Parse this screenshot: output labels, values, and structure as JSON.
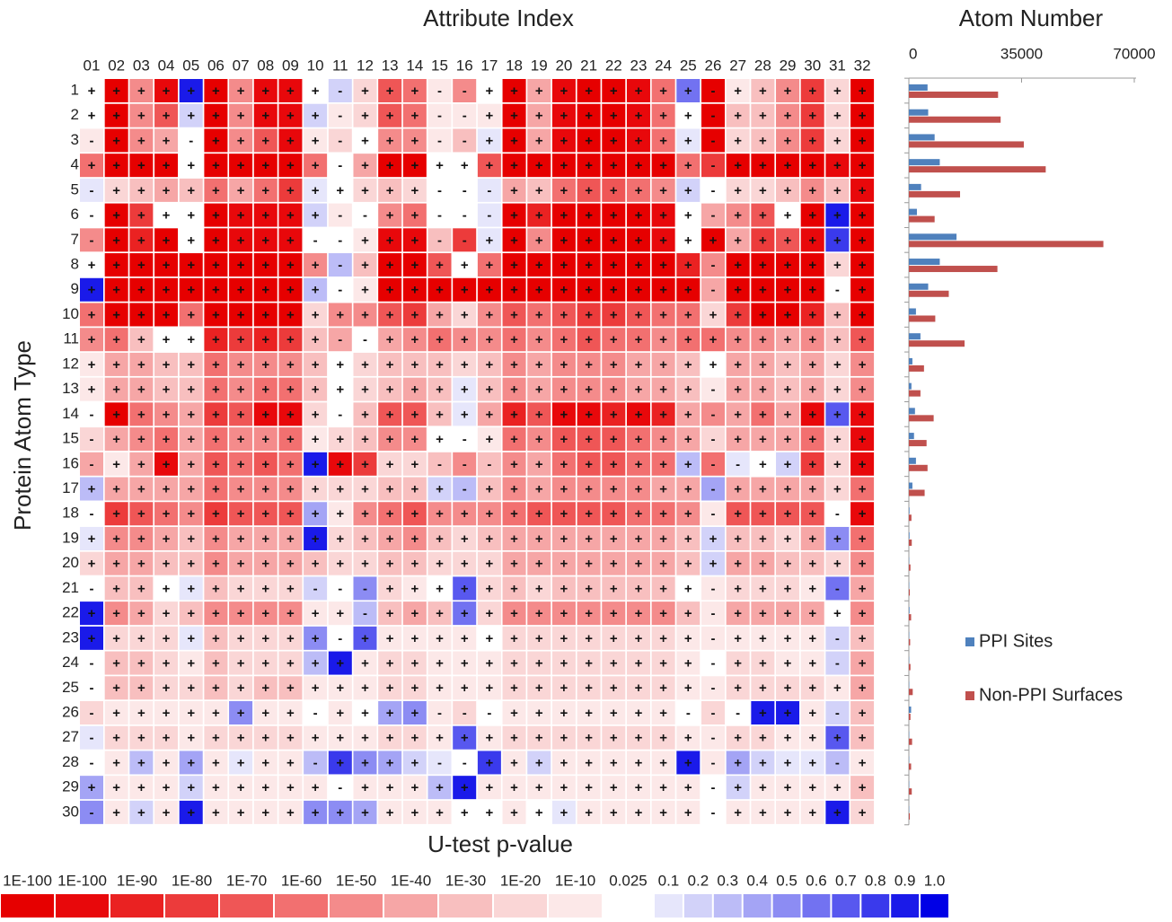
{
  "chart_data": [
    {
      "type": "heatmap",
      "title": "Attribute Index",
      "y_label": "Protein Atom Type",
      "x_label": "U-test p-value",
      "x_categories": [
        "01",
        "02",
        "03",
        "04",
        "05",
        "06",
        "07",
        "08",
        "09",
        "10",
        "11",
        "12",
        "13",
        "14",
        "15",
        "16",
        "17",
        "18",
        "19",
        "20",
        "21",
        "22",
        "23",
        "24",
        "25",
        "26",
        "27",
        "28",
        "29",
        "30",
        "31",
        "32"
      ],
      "y_categories": [
        1,
        2,
        3,
        4,
        5,
        6,
        7,
        8,
        9,
        10,
        11,
        12,
        13,
        14,
        15,
        16,
        17,
        18,
        19,
        20,
        21,
        22,
        23,
        24,
        25,
        26,
        27,
        28,
        29,
        30
      ],
      "signs": [
        "++++++++++-+++--+++++++++-++++++",
        "++++++++++-+++--+++++++++-++++++",
        "-+++-+++++-+++--+++++++++-++++++",
        "++++++++++-++++++++++++++-++++++",
        "-+++++++++++++---++++++++-++++++",
        "-+++++++++--++---++++++++-++++++",
        "-++++++++--+++--++++++++++++++++",
        "++++++++++-++++++++++++++-++++++",
        "++++++++++-++++++++++++++-++++-+",
        "++++++++++++++++++++++++++++++++",
        "++++++++++--++++++++++++++++++++",
        "++++++++++++++++++++++++++++++++",
        "+++++++++++++++++++++++++-++++++",
        "-+++++++++-++++++++++++++-++++++",
        "-++++++++++++++-+++++++++-++++++",
        "-+++++++++++++---++++++++--+++++",
        "+++++++++++++++-+++++++++-++++++",
        "-++++++++++++++++++++++++-++++-+",
        "++++++++++++++++++++++++++++++++",
        "++++++++++++++++++++++++++++++++",
        "-++++++++---+++++++++++++-++++-+",
        "+++++++++++-+++++++++++++-++++++",
        "++++++++++-++++++++++++++-++++-+",
        "-++++++++++++++++++++++++-++++-+",
        "-++++++++++++++++++++++++-++++++",
        "-++++++++-++++---+++++++---+++-+",
        "-++++++++++++++++++++++++-++++++",
        "-++++++++-++++--+++++++++-++++-+",
        "++++++++++-++++++++++++++-++++++",
        "-++++++++++++++++++++++++-++++++"
      ],
      "levels": [
        [
          11,
          0,
          6,
          1,
          20,
          0,
          6,
          1,
          1,
          11,
          13,
          9,
          4,
          5,
          10,
          6,
          11,
          0,
          7,
          1,
          0,
          0,
          1,
          5,
          17,
          0,
          10,
          8,
          6,
          3,
          9,
          0
        ],
        [
          11,
          0,
          6,
          4,
          13,
          0,
          6,
          1,
          1,
          13,
          10,
          9,
          4,
          5,
          10,
          10,
          10,
          0,
          7,
          1,
          0,
          0,
          1,
          5,
          11,
          0,
          8,
          8,
          6,
          3,
          9,
          0
        ],
        [
          10,
          0,
          6,
          7,
          11,
          0,
          6,
          4,
          1,
          10,
          9,
          11,
          6,
          6,
          10,
          8,
          12,
          0,
          7,
          1,
          0,
          0,
          1,
          5,
          12,
          0,
          9,
          8,
          6,
          3,
          9,
          0
        ],
        [
          5,
          0,
          0,
          0,
          11,
          0,
          0,
          0,
          0,
          5,
          11,
          7,
          0,
          0,
          11,
          11,
          4,
          0,
          0,
          0,
          0,
          0,
          0,
          0,
          5,
          3,
          0,
          0,
          0,
          0,
          1,
          0
        ],
        [
          12,
          9,
          8,
          7,
          8,
          5,
          7,
          5,
          3,
          12,
          11,
          9,
          8,
          9,
          11,
          11,
          12,
          7,
          8,
          5,
          4,
          4,
          5,
          6,
          13,
          11,
          9,
          9,
          8,
          6,
          8,
          1
        ],
        [
          11,
          0,
          3,
          11,
          11,
          0,
          1,
          1,
          1,
          13,
          10,
          11,
          6,
          5,
          11,
          11,
          12,
          0,
          2,
          0,
          0,
          0,
          0,
          1,
          11,
          7,
          6,
          4,
          11,
          0,
          20,
          0
        ],
        [
          6,
          0,
          2,
          0,
          11,
          0,
          1,
          1,
          1,
          11,
          11,
          10,
          1,
          1,
          8,
          3,
          12,
          0,
          6,
          0,
          0,
          0,
          0,
          1,
          11,
          0,
          7,
          3,
          4,
          1,
          19,
          0
        ],
        [
          11,
          0,
          0,
          0,
          0,
          0,
          0,
          0,
          0,
          6,
          14,
          8,
          0,
          0,
          4,
          11,
          5,
          0,
          0,
          0,
          0,
          0,
          0,
          0,
          2,
          6,
          0,
          0,
          0,
          0,
          9,
          0
        ],
        [
          20,
          0,
          0,
          0,
          0,
          0,
          0,
          0,
          0,
          14,
          11,
          10,
          0,
          0,
          0,
          0,
          0,
          0,
          0,
          0,
          0,
          0,
          0,
          0,
          0,
          7,
          0,
          0,
          0,
          0,
          11,
          0
        ],
        [
          5,
          0,
          0,
          0,
          5,
          0,
          0,
          0,
          0,
          9,
          6,
          6,
          4,
          3,
          7,
          9,
          6,
          4,
          5,
          4,
          3,
          3,
          4,
          5,
          5,
          9,
          3,
          0,
          0,
          2,
          8,
          0
        ],
        [
          6,
          5,
          8,
          11,
          11,
          2,
          3,
          2,
          3,
          8,
          7,
          11,
          7,
          6,
          5,
          6,
          6,
          5,
          6,
          5,
          4,
          5,
          5,
          6,
          5,
          5,
          6,
          6,
          7,
          6,
          8,
          4
        ],
        [
          10,
          7,
          7,
          8,
          8,
          5,
          6,
          6,
          6,
          8,
          11,
          9,
          8,
          8,
          8,
          9,
          8,
          6,
          7,
          6,
          6,
          6,
          7,
          7,
          8,
          11,
          7,
          7,
          8,
          7,
          9,
          6
        ],
        [
          10,
          7,
          7,
          8,
          8,
          5,
          6,
          5,
          5,
          8,
          11,
          9,
          8,
          7,
          8,
          12,
          8,
          6,
          7,
          6,
          6,
          6,
          7,
          7,
          8,
          10,
          7,
          7,
          8,
          7,
          9,
          6
        ],
        [
          11,
          0,
          5,
          6,
          7,
          3,
          4,
          1,
          1,
          9,
          11,
          8,
          4,
          4,
          8,
          12,
          7,
          2,
          4,
          1,
          1,
          2,
          1,
          2,
          7,
          6,
          7,
          5,
          7,
          1,
          18,
          1
        ],
        [
          9,
          7,
          6,
          5,
          7,
          5,
          6,
          6,
          5,
          10,
          9,
          8,
          6,
          6,
          11,
          11,
          10,
          5,
          6,
          4,
          4,
          4,
          5,
          6,
          7,
          9,
          7,
          7,
          7,
          5,
          9,
          1
        ],
        [
          7,
          10,
          7,
          1,
          7,
          4,
          5,
          4,
          5,
          20,
          1,
          3,
          9,
          9,
          8,
          6,
          8,
          6,
          7,
          5,
          4,
          4,
          5,
          5,
          14,
          5,
          12,
          11,
          13,
          3,
          9,
          1
        ],
        [
          14,
          7,
          7,
          7,
          7,
          5,
          6,
          6,
          6,
          9,
          9,
          9,
          8,
          8,
          13,
          14,
          8,
          6,
          7,
          6,
          6,
          6,
          6,
          7,
          7,
          15,
          7,
          7,
          7,
          7,
          9,
          5
        ],
        [
          11,
          3,
          4,
          5,
          6,
          3,
          4,
          4,
          4,
          15,
          10,
          6,
          5,
          4,
          6,
          6,
          6,
          5,
          4,
          4,
          4,
          4,
          5,
          5,
          6,
          10,
          4,
          4,
          4,
          4,
          11,
          1
        ],
        [
          12,
          6,
          6,
          7,
          8,
          6,
          7,
          7,
          7,
          20,
          9,
          8,
          7,
          6,
          8,
          9,
          8,
          7,
          7,
          7,
          7,
          7,
          7,
          7,
          8,
          13,
          8,
          8,
          9,
          7,
          16,
          5
        ],
        [
          9,
          7,
          7,
          8,
          8,
          6,
          7,
          7,
          7,
          8,
          9,
          9,
          8,
          8,
          9,
          9,
          9,
          7,
          7,
          7,
          7,
          7,
          7,
          7,
          8,
          13,
          7,
          7,
          8,
          8,
          9,
          6
        ],
        [
          11,
          8,
          8,
          11,
          12,
          8,
          9,
          9,
          9,
          13,
          11,
          16,
          9,
          10,
          11,
          18,
          9,
          8,
          9,
          8,
          8,
          8,
          8,
          8,
          11,
          10,
          9,
          9,
          9,
          10,
          17,
          7
        ],
        [
          20,
          6,
          7,
          9,
          8,
          6,
          6,
          6,
          6,
          10,
          10,
          14,
          8,
          7,
          8,
          17,
          9,
          6,
          6,
          6,
          6,
          6,
          6,
          6,
          8,
          10,
          7,
          7,
          7,
          7,
          11,
          6
        ],
        [
          20,
          9,
          9,
          9,
          12,
          8,
          9,
          9,
          9,
          16,
          11,
          18,
          10,
          10,
          10,
          10,
          11,
          9,
          9,
          9,
          9,
          9,
          9,
          9,
          10,
          10,
          10,
          10,
          10,
          10,
          13,
          8
        ],
        [
          11,
          8,
          8,
          9,
          10,
          8,
          9,
          9,
          9,
          14,
          20,
          10,
          9,
          9,
          10,
          10,
          10,
          9,
          9,
          9,
          9,
          9,
          9,
          9,
          10,
          11,
          9,
          9,
          10,
          10,
          13,
          7
        ],
        [
          11,
          8,
          8,
          9,
          9,
          8,
          9,
          8,
          8,
          10,
          10,
          10,
          9,
          9,
          10,
          10,
          10,
          9,
          9,
          9,
          9,
          9,
          9,
          9,
          10,
          10,
          9,
          9,
          9,
          9,
          10,
          7
        ],
        [
          9,
          10,
          10,
          10,
          10,
          10,
          16,
          10,
          10,
          11,
          10,
          11,
          15,
          16,
          10,
          9,
          11,
          10,
          10,
          10,
          10,
          10,
          10,
          10,
          11,
          9,
          11,
          20,
          20,
          10,
          13,
          8
        ],
        [
          12,
          9,
          9,
          9,
          10,
          9,
          9,
          9,
          9,
          10,
          10,
          10,
          9,
          9,
          10,
          18,
          10,
          9,
          9,
          9,
          9,
          9,
          9,
          9,
          10,
          10,
          9,
          9,
          10,
          10,
          18,
          8
        ],
        [
          11,
          10,
          14,
          10,
          15,
          10,
          12,
          10,
          10,
          14,
          19,
          16,
          15,
          13,
          12,
          11,
          19,
          10,
          13,
          10,
          10,
          10,
          10,
          10,
          20,
          10,
          15,
          13,
          12,
          12,
          14,
          10
        ],
        [
          15,
          10,
          10,
          10,
          13,
          10,
          10,
          10,
          10,
          10,
          11,
          10,
          10,
          10,
          14,
          20,
          10,
          10,
          10,
          10,
          10,
          10,
          10,
          10,
          10,
          11,
          13,
          10,
          10,
          10,
          10,
          8
        ],
        [
          16,
          10,
          13,
          10,
          20,
          10,
          10,
          10,
          10,
          16,
          16,
          15,
          10,
          10,
          10,
          11,
          11,
          10,
          11,
          12,
          10,
          10,
          10,
          10,
          10,
          11,
          10,
          10,
          10,
          10,
          20,
          9
        ]
      ],
      "colorbar": {
        "labels": [
          "1E-100",
          "1E-100",
          "1E-90",
          "1E-80",
          "1E-70",
          "1E-60",
          "1E-50",
          "1E-40",
          "1E-30",
          "1E-20",
          "1E-10",
          "0.025",
          "0.1",
          "0.2",
          "0.3",
          "0.4",
          "0.5",
          "0.6",
          "0.7",
          "0.8",
          "0.9",
          "1.0"
        ],
        "colors": [
          "#e60000",
          "#e8080b",
          "#ea2222",
          "#ec3b3b",
          "#ef5656",
          "#f27070",
          "#f48b8b",
          "#f6a6a6",
          "#f8bfbf",
          "#fad6d6",
          "#fce8e8",
          "#ffffff",
          "#e6e6fb",
          "#d2d2f9",
          "#bcbcf7",
          "#a4a4f5",
          "#8c8cf3",
          "#7272f1",
          "#5858ef",
          "#3a3aec",
          "#1a1ae9",
          "#0000e6"
        ]
      }
    },
    {
      "type": "bar",
      "orientation": "horizontal",
      "title": "Atom Number",
      "categories": [
        null,
        null,
        null,
        null,
        null,
        null,
        null,
        null,
        null,
        null,
        null,
        null,
        null,
        null,
        null,
        null,
        null,
        null,
        null,
        null,
        null,
        null,
        null,
        null,
        null,
        null,
        null,
        null,
        null,
        null
      ],
      "xlim": [
        0,
        70000
      ],
      "xticks": [
        0,
        35000,
        70000
      ],
      "legend": "right",
      "series": [
        {
          "name": "PPI Sites",
          "color": "#4f81bd",
          "values": [
            5800,
            6000,
            8000,
            9600,
            3800,
            2500,
            14800,
            9600,
            6000,
            2200,
            3600,
            1100,
            800,
            1900,
            1600,
            2200,
            1100,
            200,
            200,
            100,
            100,
            200,
            100,
            100,
            100,
            700,
            100,
            100,
            100,
            100
          ]
        },
        {
          "name": "Non-PPI Surfaces",
          "color": "#c0504d",
          "values": [
            27700,
            28500,
            35700,
            42500,
            15900,
            8000,
            60400,
            27500,
            12400,
            8200,
            17300,
            4700,
            3600,
            7700,
            5500,
            5800,
            4900,
            800,
            900,
            500,
            300,
            700,
            400,
            500,
            1200,
            500,
            1000,
            700,
            900,
            300
          ]
        }
      ]
    }
  ]
}
